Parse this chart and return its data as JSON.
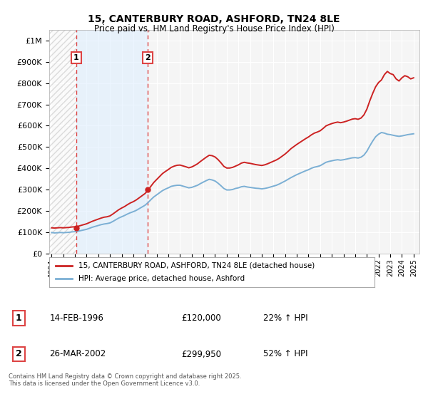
{
  "title": "15, CANTERBURY ROAD, ASHFORD, TN24 8LE",
  "subtitle": "Price paid vs. HM Land Registry's House Price Index (HPI)",
  "ylim": [
    0,
    1050000
  ],
  "yticks": [
    0,
    100000,
    200000,
    300000,
    400000,
    500000,
    600000,
    700000,
    800000,
    900000,
    1000000
  ],
  "ytick_labels": [
    "£0",
    "£100K",
    "£200K",
    "£300K",
    "£400K",
    "£500K",
    "£600K",
    "£700K",
    "£800K",
    "£900K",
    "£1M"
  ],
  "hpi_color": "#7bafd4",
  "price_color": "#cc2222",
  "vline_color": "#dd4444",
  "background_color": "#ffffff",
  "plot_bg_color": "#f5f5f5",
  "grid_color": "#ffffff",
  "hatch_color": "#cccccc",
  "light_blue_fill": "#ddeeff",
  "sale1_year": 1996.12,
  "sale1_price": 120000,
  "sale1_label": "1",
  "sale1_date": "14-FEB-1996",
  "sale1_price_str": "£120,000",
  "sale1_hpi_pct": "22% ↑ HPI",
  "sale2_year": 2002.23,
  "sale2_price": 299950,
  "sale2_label": "2",
  "sale2_date": "26-MAR-2002",
  "sale2_price_str": "£299,950",
  "sale2_hpi_pct": "52% ↑ HPI",
  "legend_line1": "15, CANTERBURY ROAD, ASHFORD, TN24 8LE (detached house)",
  "legend_line2": "HPI: Average price, detached house, Ashford",
  "footer": "Contains HM Land Registry data © Crown copyright and database right 2025.\nThis data is licensed under the Open Government Licence v3.0.",
  "hpi_data_x": [
    1994.0,
    1994.25,
    1994.5,
    1994.75,
    1995.0,
    1995.25,
    1995.5,
    1995.75,
    1996.0,
    1996.25,
    1996.5,
    1996.75,
    1997.0,
    1997.25,
    1997.5,
    1997.75,
    1998.0,
    1998.25,
    1998.5,
    1998.75,
    1999.0,
    1999.25,
    1999.5,
    1999.75,
    2000.0,
    2000.25,
    2000.5,
    2000.75,
    2001.0,
    2001.25,
    2001.5,
    2001.75,
    2002.0,
    2002.25,
    2002.5,
    2002.75,
    2003.0,
    2003.25,
    2003.5,
    2003.75,
    2004.0,
    2004.25,
    2004.5,
    2004.75,
    2005.0,
    2005.25,
    2005.5,
    2005.75,
    2006.0,
    2006.25,
    2006.5,
    2006.75,
    2007.0,
    2007.25,
    2007.5,
    2007.75,
    2008.0,
    2008.25,
    2008.5,
    2008.75,
    2009.0,
    2009.25,
    2009.5,
    2009.75,
    2010.0,
    2010.25,
    2010.5,
    2010.75,
    2011.0,
    2011.25,
    2011.5,
    2011.75,
    2012.0,
    2012.25,
    2012.5,
    2012.75,
    2013.0,
    2013.25,
    2013.5,
    2013.75,
    2014.0,
    2014.25,
    2014.5,
    2014.75,
    2015.0,
    2015.25,
    2015.5,
    2015.75,
    2016.0,
    2016.25,
    2016.5,
    2016.75,
    2017.0,
    2017.25,
    2017.5,
    2017.75,
    2018.0,
    2018.25,
    2018.5,
    2018.75,
    2019.0,
    2019.25,
    2019.5,
    2019.75,
    2020.0,
    2020.25,
    2020.5,
    2020.75,
    2021.0,
    2021.25,
    2021.5,
    2021.75,
    2022.0,
    2022.25,
    2022.5,
    2022.75,
    2023.0,
    2023.25,
    2023.5,
    2023.75,
    2024.0,
    2024.25,
    2024.5,
    2024.75,
    2025.0
  ],
  "hpi_data_y": [
    98000,
    96000,
    97000,
    98000,
    97000,
    98000,
    99000,
    101000,
    102000,
    104000,
    107000,
    110000,
    113000,
    118000,
    123000,
    127000,
    131000,
    135000,
    138000,
    140000,
    143000,
    150000,
    158000,
    166000,
    172000,
    178000,
    185000,
    191000,
    196000,
    202000,
    210000,
    218000,
    226000,
    238000,
    252000,
    265000,
    275000,
    285000,
    295000,
    302000,
    308000,
    315000,
    318000,
    320000,
    320000,
    316000,
    312000,
    308000,
    310000,
    315000,
    320000,
    328000,
    335000,
    342000,
    348000,
    345000,
    340000,
    330000,
    318000,
    305000,
    298000,
    298000,
    300000,
    305000,
    308000,
    313000,
    315000,
    312000,
    310000,
    308000,
    306000,
    305000,
    303000,
    305000,
    308000,
    312000,
    316000,
    320000,
    326000,
    333000,
    340000,
    348000,
    356000,
    363000,
    370000,
    376000,
    382000,
    388000,
    393000,
    400000,
    405000,
    408000,
    412000,
    420000,
    428000,
    432000,
    435000,
    438000,
    440000,
    438000,
    440000,
    443000,
    446000,
    449000,
    450000,
    448000,
    452000,
    462000,
    480000,
    505000,
    528000,
    548000,
    560000,
    568000,
    565000,
    560000,
    558000,
    555000,
    552000,
    550000,
    552000,
    555000,
    558000,
    560000,
    562000
  ],
  "price_data_x": [
    1994.0,
    1994.25,
    1994.5,
    1994.75,
    1995.0,
    1995.25,
    1995.5,
    1995.75,
    1996.0,
    1996.25,
    1996.5,
    1996.75,
    1997.0,
    1997.25,
    1997.5,
    1997.75,
    1998.0,
    1998.25,
    1998.5,
    1998.75,
    1999.0,
    1999.25,
    1999.5,
    1999.75,
    2000.0,
    2000.25,
    2000.5,
    2000.75,
    2001.0,
    2001.25,
    2001.5,
    2001.75,
    2002.0,
    2002.25,
    2002.5,
    2002.75,
    2003.0,
    2003.25,
    2003.5,
    2003.75,
    2004.0,
    2004.25,
    2004.5,
    2004.75,
    2005.0,
    2005.25,
    2005.5,
    2005.75,
    2006.0,
    2006.25,
    2006.5,
    2006.75,
    2007.0,
    2007.25,
    2007.5,
    2007.75,
    2008.0,
    2008.25,
    2008.5,
    2008.75,
    2009.0,
    2009.25,
    2009.5,
    2009.75,
    2010.0,
    2010.25,
    2010.5,
    2010.75,
    2011.0,
    2011.25,
    2011.5,
    2011.75,
    2012.0,
    2012.25,
    2012.5,
    2012.75,
    2013.0,
    2013.25,
    2013.5,
    2013.75,
    2014.0,
    2014.25,
    2014.5,
    2014.75,
    2015.0,
    2015.25,
    2015.5,
    2015.75,
    2016.0,
    2016.25,
    2016.5,
    2016.75,
    2017.0,
    2017.25,
    2017.5,
    2017.75,
    2018.0,
    2018.25,
    2018.5,
    2018.75,
    2019.0,
    2019.25,
    2019.5,
    2019.75,
    2020.0,
    2020.25,
    2020.5,
    2020.75,
    2021.0,
    2021.25,
    2021.5,
    2021.75,
    2022.0,
    2022.25,
    2022.5,
    2022.75,
    2023.0,
    2023.25,
    2023.5,
    2023.75,
    2024.0,
    2024.25,
    2024.5,
    2024.75,
    2025.0
  ],
  "price_data_y": [
    120000,
    119000,
    120000,
    121000,
    120000,
    121000,
    122000,
    124000,
    125000,
    127000,
    131000,
    135000,
    139000,
    145000,
    151000,
    156000,
    161000,
    166000,
    170000,
    172000,
    176000,
    185000,
    195000,
    205000,
    213000,
    220000,
    229000,
    237000,
    243000,
    251000,
    261000,
    271000,
    281000,
    296000,
    315000,
    333000,
    347000,
    361000,
    375000,
    385000,
    394000,
    404000,
    410000,
    414000,
    415000,
    411000,
    407000,
    402000,
    406000,
    413000,
    421000,
    432000,
    442000,
    452000,
    461000,
    459000,
    453000,
    441000,
    426000,
    409000,
    401000,
    401000,
    404000,
    410000,
    416000,
    424000,
    428000,
    425000,
    423000,
    420000,
    417000,
    415000,
    413000,
    416000,
    421000,
    427000,
    433000,
    439000,
    447000,
    457000,
    467000,
    479000,
    492000,
    502000,
    512000,
    521000,
    530000,
    539000,
    547000,
    557000,
    565000,
    570000,
    576000,
    587000,
    599000,
    605000,
    610000,
    614000,
    617000,
    614000,
    617000,
    621000,
    626000,
    631000,
    633000,
    630000,
    636000,
    651000,
    678000,
    717000,
    752000,
    783000,
    803000,
    815000,
    840000,
    855000,
    845000,
    840000,
    820000,
    810000,
    825000,
    835000,
    830000,
    820000,
    825000
  ],
  "xlim": [
    1993.8,
    2025.5
  ],
  "xtick_years": [
    1994,
    1995,
    1996,
    1997,
    1998,
    1999,
    2000,
    2001,
    2002,
    2003,
    2004,
    2005,
    2006,
    2007,
    2008,
    2009,
    2010,
    2011,
    2012,
    2013,
    2014,
    2015,
    2016,
    2017,
    2018,
    2019,
    2020,
    2021,
    2022,
    2023,
    2024,
    2025
  ]
}
